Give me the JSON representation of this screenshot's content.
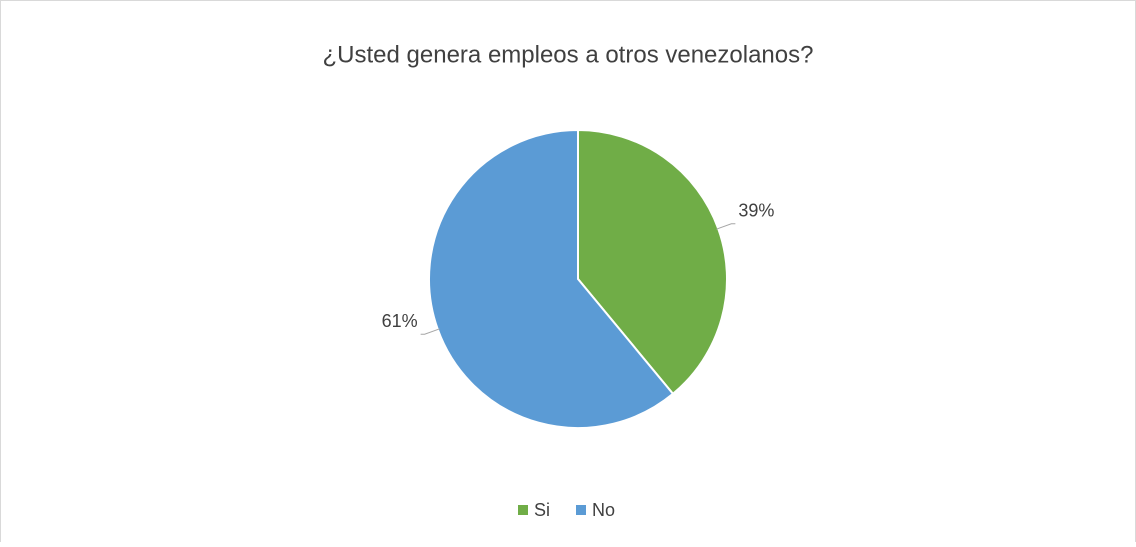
{
  "chart_data": {
    "type": "pie",
    "title": "¿Usted genera empleos a otros venezolanos?",
    "categories": [
      "Si",
      "No"
    ],
    "values": [
      39,
      61
    ],
    "value_labels": [
      "39%",
      "61%"
    ],
    "colors": [
      "#70ad47",
      "#5b9bd5"
    ],
    "legend": "bottom"
  }
}
